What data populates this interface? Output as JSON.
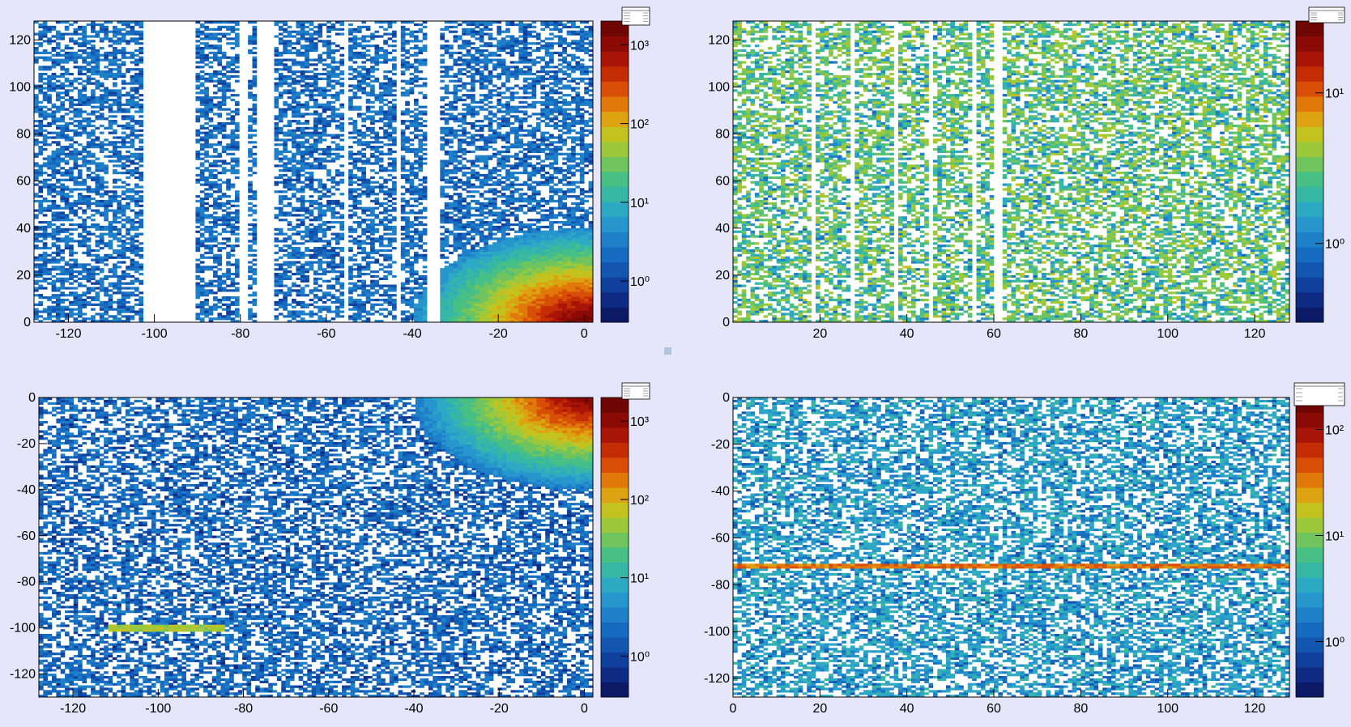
{
  "colors": {
    "background": "#e6e6fa",
    "palette": [
      "#0c1966",
      "#0e2a82",
      "#10409e",
      "#1256b0",
      "#166bc0",
      "#1d80c8",
      "#2696cc",
      "#2ea9c4",
      "#36b7a6",
      "#48bf84",
      "#70c45e",
      "#9cc93c",
      "#c4c21e",
      "#dca210",
      "#e0780a",
      "#d84e06",
      "#c42c04",
      "#a81406",
      "#8c0a06",
      "#6e0604"
    ],
    "empty_bin": "#ffffff",
    "divider_dot": "#b0c4de"
  },
  "chart_data": [
    {
      "type": "heatmap",
      "id": "top-left",
      "x_range": [
        -128,
        2
      ],
      "y_range": [
        0,
        128
      ],
      "x_ticks": [
        -120,
        -100,
        -80,
        -60,
        -40,
        -20,
        0
      ],
      "x_tick_labels": [
        "-120",
        "-100",
        "-80",
        "-60",
        "-40",
        "-20",
        "0"
      ],
      "y_ticks": [
        0,
        20,
        40,
        60,
        80,
        100,
        120
      ],
      "y_tick_labels": [
        "0",
        "20",
        "40",
        "60",
        "80",
        "100",
        "120"
      ],
      "z_scale": "log",
      "z_range": [
        0.3,
        2000
      ],
      "colorbar_ticks": [
        1,
        10,
        100,
        1000
      ],
      "colorbar_labels": [
        "10⁰",
        "10¹",
        "10²",
        "10³"
      ],
      "empty_columns": [
        [
          -103,
          -90
        ],
        [
          -80,
          -78
        ],
        [
          -76,
          -72
        ],
        [
          -56,
          -55
        ],
        [
          -44,
          -43
        ],
        [
          -37,
          -34
        ]
      ],
      "hot_spot": {
        "x": 0,
        "y": 0,
        "peak": 2000
      },
      "background_level": 1.5,
      "grid": false,
      "stats_box": true
    },
    {
      "type": "heatmap",
      "id": "top-right",
      "x_range": [
        0,
        128
      ],
      "y_range": [
        0,
        128
      ],
      "x_ticks": [
        20,
        40,
        60,
        80,
        100,
        120
      ],
      "x_tick_labels": [
        "20",
        "40",
        "60",
        "80",
        "100",
        "120"
      ],
      "y_ticks": [
        0,
        20,
        40,
        60,
        80,
        100,
        120
      ],
      "y_tick_labels": [
        "0",
        "20",
        "40",
        "60",
        "80",
        "100",
        "120"
      ],
      "z_scale": "log",
      "z_range": [
        0.3,
        30
      ],
      "colorbar_ticks": [
        1,
        10
      ],
      "colorbar_labels": [
        "10⁰",
        "10¹"
      ],
      "empty_columns": [
        [
          18,
          19
        ],
        [
          27,
          28
        ],
        [
          37,
          38
        ],
        [
          45,
          46
        ],
        [
          55,
          56
        ],
        [
          60,
          62
        ]
      ],
      "background_level": 1.8,
      "grid": false,
      "stats_box": true
    },
    {
      "type": "heatmap",
      "id": "bottom-left",
      "x_range": [
        -128,
        2
      ],
      "y_range": [
        -130,
        0
      ],
      "x_ticks": [
        -120,
        -100,
        -80,
        -60,
        -40,
        -20,
        0
      ],
      "x_tick_labels": [
        "-120",
        "-100",
        "-80",
        "-60",
        "-40",
        "-20",
        "0"
      ],
      "y_ticks": [
        0,
        -20,
        -40,
        -60,
        -80,
        -100,
        -120
      ],
      "y_tick_labels": [
        "0",
        "-20",
        "-40",
        "-60",
        "-80",
        "-100",
        "-120"
      ],
      "z_scale": "log",
      "z_range": [
        0.3,
        2000
      ],
      "colorbar_ticks": [
        1,
        10,
        100,
        1000
      ],
      "colorbar_labels": [
        "10⁰",
        "10¹",
        "10²",
        "10³"
      ],
      "empty_columns": [],
      "hot_spot": {
        "x": 0,
        "y": 0,
        "peak": 1500
      },
      "bright_row": {
        "y": -100,
        "x_from": -112,
        "x_to": -84,
        "level": 60
      },
      "background_level": 1.3,
      "grid": false,
      "stats_box": true
    },
    {
      "type": "heatmap",
      "id": "bottom-right",
      "x_range": [
        0,
        128
      ],
      "y_range": [
        -128,
        0
      ],
      "x_ticks": [
        0,
        20,
        40,
        60,
        80,
        100,
        120
      ],
      "x_tick_labels": [
        "0",
        "20",
        "40",
        "60",
        "80",
        "100",
        "120"
      ],
      "y_ticks": [
        0,
        -20,
        -40,
        -60,
        -80,
        -100,
        -120
      ],
      "y_tick_labels": [
        "0",
        "-20",
        "-40",
        "-60",
        "-80",
        "-100",
        "-120"
      ],
      "z_scale": "log",
      "z_range": [
        0.3,
        200
      ],
      "colorbar_ticks": [
        1,
        10,
        100
      ],
      "colorbar_labels": [
        "10⁰",
        "10¹",
        "10²"
      ],
      "empty_columns": [],
      "bright_row": {
        "y": -72,
        "x_from": 0,
        "x_to": 128,
        "level": 40
      },
      "background_level": 1.7,
      "grid": false,
      "stats_box": true
    }
  ]
}
